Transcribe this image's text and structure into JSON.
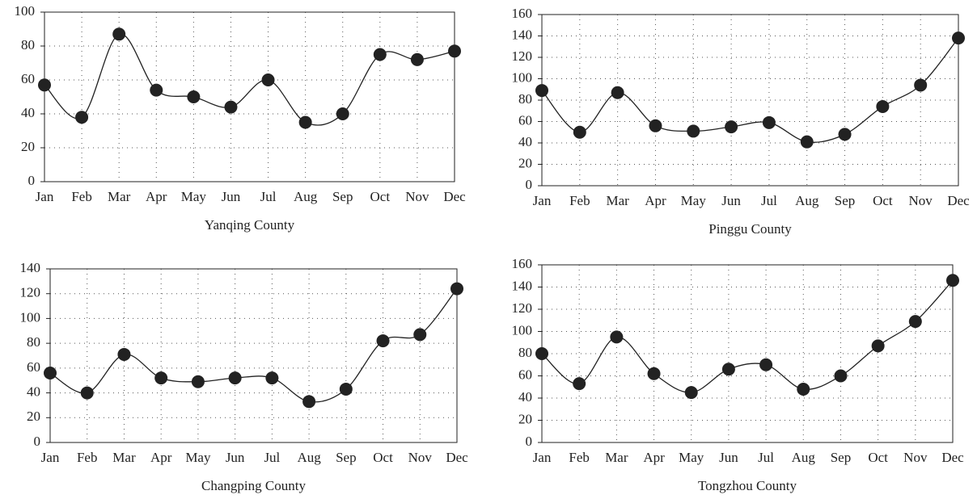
{
  "chart_data": [
    {
      "type": "line",
      "xlabel": "Yanqing County",
      "categories": [
        "Jan",
        "Feb",
        "Mar",
        "Apr",
        "May",
        "Jun",
        "Jul",
        "Aug",
        "Sep",
        "Oct",
        "Nov",
        "Dec"
      ],
      "series": [
        {
          "color": "#222222",
          "values": [
            57,
            38,
            87,
            54,
            50,
            44,
            60,
            35,
            40,
            75,
            72,
            77
          ]
        }
      ],
      "ylim": [
        0,
        100
      ],
      "yticks": [
        0,
        20,
        40,
        60,
        80,
        100
      ],
      "grid": true
    },
    {
      "type": "line",
      "xlabel": "Pinggu County",
      "categories": [
        "Jan",
        "Feb",
        "Mar",
        "Apr",
        "May",
        "Jun",
        "Jul",
        "Aug",
        "Sep",
        "Oct",
        "Nov",
        "Dec"
      ],
      "series": [
        {
          "color": "#222222",
          "values": [
            89,
            50,
            87,
            56,
            51,
            55,
            59,
            41,
            48,
            74,
            94,
            138
          ]
        }
      ],
      "ylim": [
        0,
        160
      ],
      "yticks": [
        0,
        20,
        40,
        60,
        80,
        100,
        120,
        140,
        160
      ],
      "grid": true
    },
    {
      "type": "line",
      "xlabel": "Changping County",
      "categories": [
        "Jan",
        "Feb",
        "Mar",
        "Apr",
        "May",
        "Jun",
        "Jul",
        "Aug",
        "Sep",
        "Oct",
        "Nov",
        "Dec"
      ],
      "series": [
        {
          "color": "#222222",
          "values": [
            56,
            40,
            71,
            52,
            49,
            52,
            52,
            33,
            43,
            82,
            87,
            124
          ]
        }
      ],
      "ylim": [
        0,
        140
      ],
      "yticks": [
        0,
        20,
        40,
        60,
        80,
        100,
        120,
        140
      ],
      "grid": true
    },
    {
      "type": "line",
      "xlabel": "Tongzhou County",
      "categories": [
        "Jan",
        "Feb",
        "Mar",
        "Apr",
        "May",
        "Jun",
        "Jul",
        "Aug",
        "Sep",
        "Oct",
        "Nov",
        "Dec"
      ],
      "series": [
        {
          "color": "#222222",
          "values": [
            80,
            53,
            95,
            62,
            45,
            66,
            70,
            48,
            60,
            87,
            109,
            146
          ]
        }
      ],
      "ylim": [
        0,
        160
      ],
      "yticks": [
        0,
        20,
        40,
        60,
        80,
        100,
        120,
        140,
        160
      ],
      "grid": true
    }
  ]
}
